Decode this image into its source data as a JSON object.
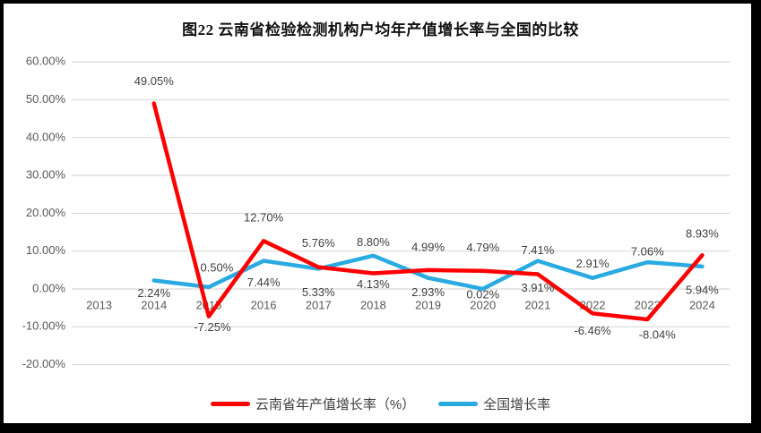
{
  "frame": {
    "background": "#FFFFFF",
    "border_color": "#000000"
  },
  "styles": {
    "grid_color": "#D9D9D9",
    "axis_text_color": "#595959",
    "data_label_color": "#3F3F3F",
    "title_color": "#111111"
  },
  "chart_data": {
    "type": "line",
    "title": "图22  云南省检验检测机构户均年产值增长率与全国的比较",
    "categories": [
      "2013",
      "2014",
      "2015",
      "2016",
      "2017",
      "2018",
      "2019",
      "2020",
      "2021",
      "2022",
      "2023",
      "2024"
    ],
    "series": [
      {
        "name": "云南省年产值增长率（%）",
        "color": "#FF0000",
        "values": [
          null,
          49.05,
          -7.25,
          12.7,
          5.76,
          4.13,
          4.99,
          4.79,
          3.91,
          -6.46,
          -8.04,
          8.93
        ],
        "labels": [
          "",
          "49.05%",
          "-7.25%",
          "12.70%",
          "5.76%",
          "4.13%",
          "4.99%",
          "4.79%",
          "3.91%",
          "-6.46%",
          "-8.04%",
          "8.93%"
        ]
      },
      {
        "name": "全国增长率",
        "color": "#29ABE2",
        "values": [
          null,
          2.24,
          0.5,
          7.44,
          5.33,
          8.8,
          2.93,
          0.02,
          7.41,
          2.91,
          7.06,
          5.94
        ],
        "labels": [
          "",
          "2.24%",
          "0.50%",
          "7.44%",
          "5.33%",
          "8.80%",
          "2.93%",
          "0.02%",
          "7.41%",
          "2.91%",
          "7.06%",
          "5.94%"
        ]
      }
    ],
    "y_axis": {
      "min": -20,
      "max": 60,
      "tick_values": [
        60,
        50,
        40,
        30,
        20,
        10,
        0,
        -10,
        -20
      ],
      "tick_labels": [
        "60.00%",
        "50.00%",
        "40.00%",
        "30.00%",
        "20.00%",
        "10.00%",
        "0.00%",
        "-10.00%",
        "-20.00%"
      ]
    },
    "grid": true,
    "legend_position": "bottom"
  }
}
